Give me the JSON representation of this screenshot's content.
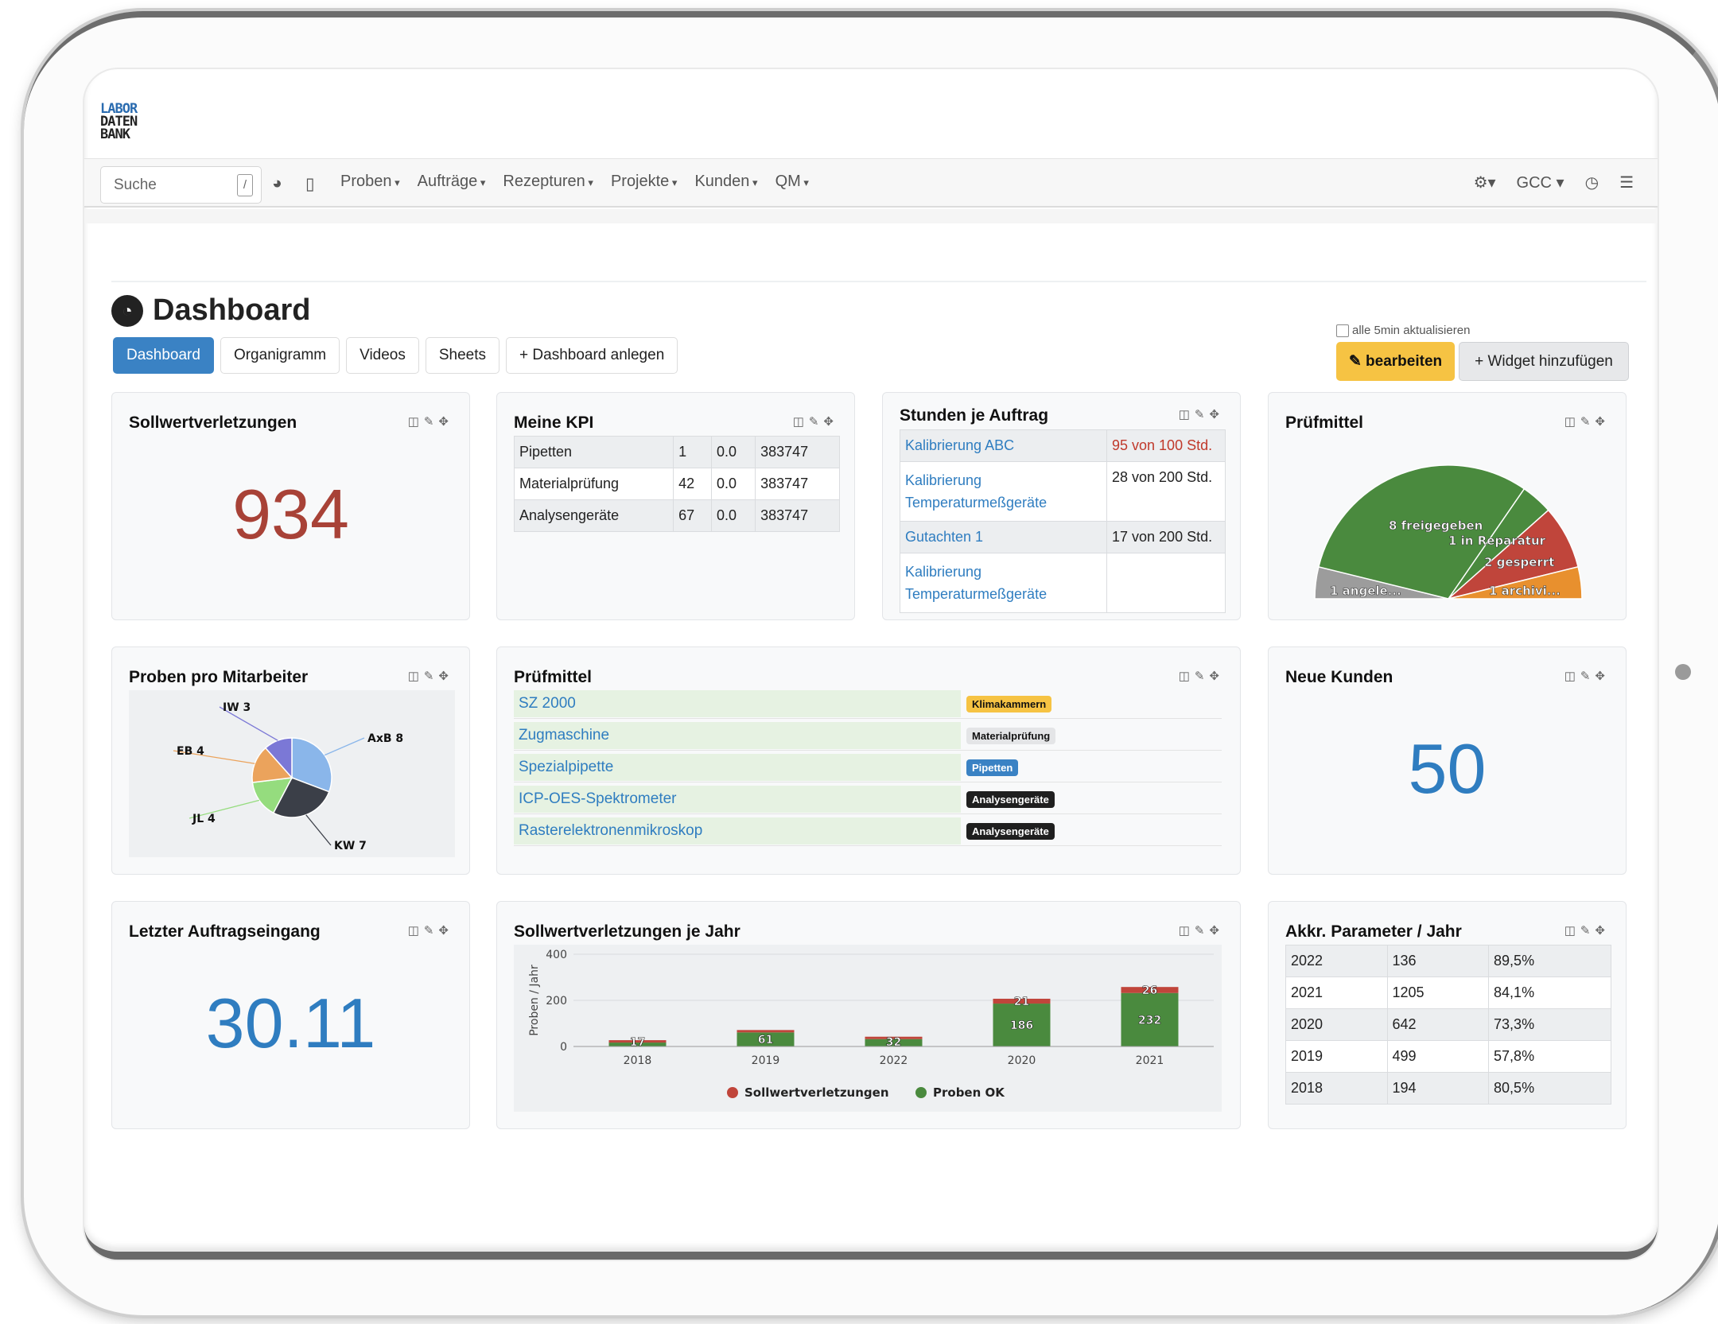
{
  "app": {
    "logo_lines": [
      "LABOR",
      "DATEN",
      "BANK"
    ]
  },
  "search": {
    "placeholder": "Suche",
    "shortcut": "/"
  },
  "nav": {
    "menus": [
      "Proben",
      "Aufträge",
      "Rezepturen",
      "Projekte",
      "Kunden",
      "QM"
    ],
    "right": {
      "user": "GCC"
    }
  },
  "page": {
    "title": "Dashboard"
  },
  "tabs": [
    "Dashboard",
    "Organigramm",
    "Videos",
    "Sheets",
    "+ Dashboard anlegen"
  ],
  "toolbar": {
    "auto_refresh": "alle 5min aktualisieren",
    "edit": "bearbeiten",
    "add_widget": "+ Widget hinzufügen"
  },
  "w_sollwert": {
    "title": "Sollwertverletzungen",
    "value": "934"
  },
  "w_kpi": {
    "title": "Meine KPI",
    "rows": [
      [
        "Pipetten",
        "1",
        "0.0",
        "383747"
      ],
      [
        "Materialprüfung",
        "42",
        "0.0",
        "383747"
      ],
      [
        "Analysengeräte",
        "67",
        "0.0",
        "383747"
      ]
    ]
  },
  "w_stunden": {
    "title": "Stunden je Auftrag",
    "rows": [
      {
        "name": "Kalibrierung ABC",
        "hours": "95 von 100 Std.",
        "alert": true
      },
      {
        "name": "Kalibrierung Temperaturmeßgeräte",
        "hours": "28 von 200 Std.",
        "alert": false
      },
      {
        "name": "Gutachten 1",
        "hours": "17 von 200 Std.",
        "alert": false
      },
      {
        "name": "Kalibrierung Temperaturmeßgeräte",
        "hours": "",
        "alert": false
      }
    ]
  },
  "w_pruefmittel_chart": {
    "title": "Prüfmittel"
  },
  "w_proben": {
    "title": "Proben pro Mitarbeiter"
  },
  "w_pruefmittel_list": {
    "title": "Prüfmittel",
    "rows": [
      {
        "name": "SZ 2000",
        "badge": "Klimakammern",
        "badge_bg": "#f6c343",
        "badge_fg": "#111"
      },
      {
        "name": "Zugmaschine",
        "badge": "Materialprüfung",
        "badge_bg": "#e4e5e7",
        "badge_fg": "#111"
      },
      {
        "name": "Spezialpipette",
        "badge": "Pipetten",
        "badge_bg": "#3a82c4",
        "badge_fg": "#fff"
      },
      {
        "name": "ICP-OES-Spektrometer",
        "badge": "Analysengeräte",
        "badge_bg": "#1f1f1f",
        "badge_fg": "#fff"
      },
      {
        "name": "Rasterelektronenmikroskop",
        "badge": "Analysengeräte",
        "badge_bg": "#1f1f1f",
        "badge_fg": "#fff"
      }
    ]
  },
  "w_kunden": {
    "title": "Neue Kunden",
    "value": "50"
  },
  "w_letzter": {
    "title": "Letzter Auftragseingang",
    "value": "30.11"
  },
  "w_bar": {
    "title": "Sollwertverletzungen je Jahr"
  },
  "w_akkr": {
    "title": "Akkr. Parameter / Jahr",
    "rows": [
      [
        "2022",
        "136",
        "89,5%"
      ],
      [
        "2021",
        "1205",
        "84,1%"
      ],
      [
        "2020",
        "642",
        "73,3%"
      ],
      [
        "2019",
        "499",
        "57,8%"
      ],
      [
        "2018",
        "194",
        "80,5%"
      ]
    ]
  },
  "chart_data": [
    {
      "type": "pie",
      "title": "Prüfmittel",
      "labels": [
        "8 freigegeben",
        "1 in Reparatur",
        "2 gesperrt",
        "1 archivi...",
        "1 angele..."
      ],
      "values": [
        8,
        1,
        2,
        1,
        1
      ],
      "colors": [
        "#4a8a3e",
        "#4a8a3e",
        "#c0453b",
        "#e8902e",
        "#9c9c9c"
      ]
    },
    {
      "type": "pie",
      "title": "Proben pro Mitarbeiter",
      "labels": [
        "AxB 8",
        "KW 7",
        "JL 4",
        "EB 4",
        "IW 3"
      ],
      "values": [
        8,
        7,
        4,
        4,
        3
      ],
      "colors": [
        "#8ab6ea",
        "#3b3f48",
        "#95dc7e",
        "#eba35c",
        "#7b78d6"
      ]
    },
    {
      "type": "bar",
      "title": "Sollwertverletzungen je Jahr",
      "ylabel": "Proben / Jahr",
      "categories": [
        "2018",
        "2019",
        "2022",
        "2020",
        "2021"
      ],
      "ylim": [
        0,
        400
      ],
      "yticks": [
        0,
        200,
        400
      ],
      "stacked": true,
      "series": [
        {
          "name": "Proben OK",
          "color": "#4a8a3e",
          "values": [
            17,
            61,
            32,
            186,
            232
          ]
        },
        {
          "name": "Sollwertverletzungen",
          "color": "#c0453b",
          "values": [
            null,
            null,
            null,
            21,
            26
          ]
        }
      ],
      "legend": "bottom"
    }
  ]
}
